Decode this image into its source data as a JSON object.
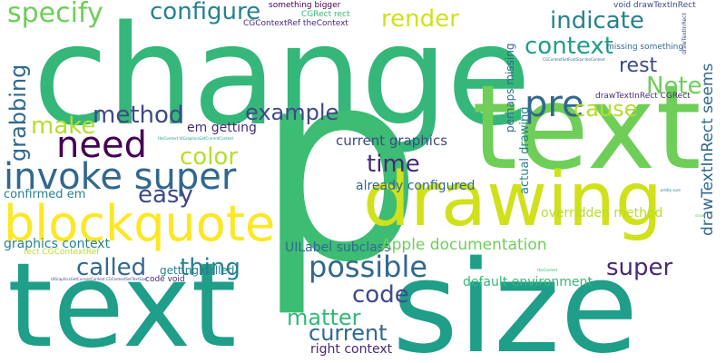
{
  "words": {
    "change": "change",
    "text_big": "text",
    "p": "p",
    "text_bottom": "text",
    "size": "size",
    "drawing": "drawing",
    "blockquote": "blockquote",
    "invoke_super": "invoke super",
    "need": "need",
    "pre": "pre",
    "specify": "specify",
    "configure": "configure",
    "render": "render",
    "indicate": "indicate",
    "context": "context",
    "rest": "rest",
    "note": "Note",
    "cause": "cause",
    "method": "method",
    "example": "example",
    "make": "make",
    "grabbing": "grabbing",
    "color": "color",
    "time": "time",
    "easy": "easy",
    "em_getting": "em getting",
    "current_graphics": "current graphics",
    "possible": "possible",
    "called": "called",
    "thing": "thing",
    "super": "super",
    "code": "code",
    "matter": "matter",
    "current": "current",
    "right_context": "right context",
    "uilabel_subclass": "UILabel subclass",
    "apple_documentation": "Apple documentation",
    "default_environment": "default environment",
    "overridden_method": "overridden method",
    "already_configured": "already configured",
    "graphics_context": "graphics context",
    "getting_called": "getting called",
    "confirmed_em": "confirmed em",
    "code_void": "code void",
    "rect_cgcontextref": "rect CGContextRef",
    "cgcontextref_thecontext": "CGContextRef theContext",
    "cgrect_rect": "CGRect rect",
    "something_bigger": "something bigger",
    "void_drawtextinrect": "void drawTextInRect",
    "missing_something": "missing something",
    "drawtextinrect_cgrect": "drawTextInRect CGRect",
    "drawtextinrect_seems": "drawTextInRect seems",
    "drawtextinrect_v": "drawTextInRect",
    "actual_drawing": "actual drawing",
    "perhaps_missing": "perhaps missing",
    "thecontext_uigraphics": "theContext UIGraphicsGetCurrentContext",
    "pretty_sure": "pretty sure",
    "cgcontextsetfontsize": "CGContextSetFontSize theContext",
    "uigraphicsgetcurrentcontext": "UIGraphicsGetCurrentContext CGContextSetTextSize",
    "thecontext_tiny": "theContext",
    "draw_tiny": "draw"
  },
  "colors": {
    "yellow": "#fde725",
    "yellowgreen": "#d0e11c",
    "lime": "#b5de2b",
    "lightgreen": "#6ece58",
    "green": "#35b779",
    "teal": "#1f9e89",
    "cyan": "#26828e",
    "steelblue": "#31688e",
    "blueviolet": "#3e4989",
    "indigo": "#482878",
    "darkpurple": "#440154",
    "seagreen": "#3dbc74"
  }
}
